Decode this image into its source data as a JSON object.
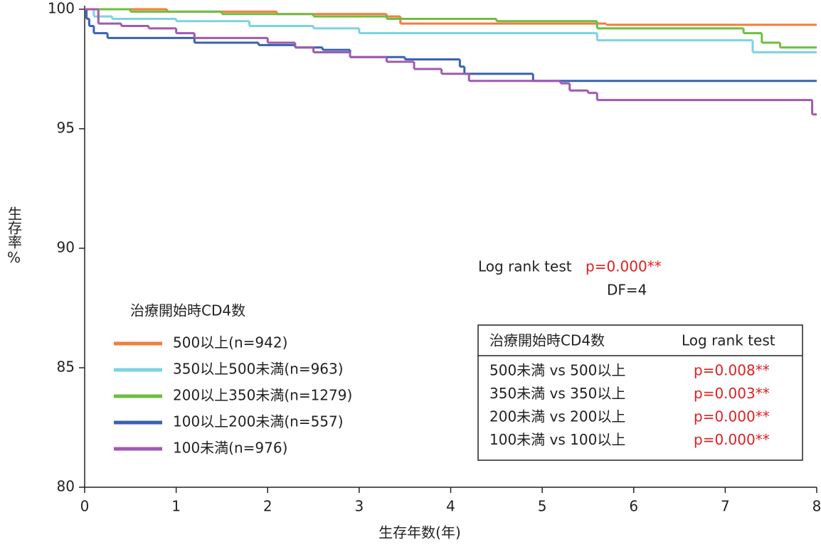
{
  "chart_data": {
    "type": "line",
    "step": "post",
    "xlabel": "生存年数(年)",
    "ylabel": "生存率%",
    "xlim": [
      0,
      8
    ],
    "ylim": [
      80,
      100
    ],
    "xticks": [
      0,
      1,
      2,
      3,
      4,
      5,
      6,
      7,
      8
    ],
    "yticks": [
      80,
      85,
      90,
      95,
      100
    ],
    "legend_title": "治療開始時CD4数",
    "series": [
      {
        "name": "500以上(n=942)",
        "color": "#f47c3c",
        "x": [
          0,
          0.9,
          2.1,
          3.3,
          3.45,
          5.7,
          8
        ],
        "values": [
          100,
          99.9,
          99.8,
          99.7,
          99.4,
          99.35,
          99.35
        ]
      },
      {
        "name": "350以上500未満(n=963)",
        "color": "#7dd3e0",
        "x": [
          0,
          0.1,
          0.3,
          1.0,
          1.8,
          2.5,
          3.0,
          5.6,
          7.3,
          8
        ],
        "values": [
          100,
          99.7,
          99.6,
          99.5,
          99.3,
          99.2,
          99.0,
          98.7,
          98.2,
          98.2
        ]
      },
      {
        "name": "200以上350未満(n=1279)",
        "color": "#6cbf3f",
        "x": [
          0,
          0.5,
          1.5,
          2.5,
          3.3,
          4.5,
          5.6,
          7.2,
          7.4,
          7.6,
          8
        ],
        "values": [
          100,
          99.9,
          99.8,
          99.7,
          99.6,
          99.5,
          99.2,
          99.0,
          98.6,
          98.4,
          98.4
        ]
      },
      {
        "name": "100以上200未満(n=557)",
        "color": "#3a62b0",
        "x": [
          0,
          0.02,
          0.05,
          0.1,
          0.25,
          1.2,
          1.9,
          2.3,
          2.6,
          2.9,
          3.5,
          4.1,
          4.15,
          4.9,
          8
        ],
        "values": [
          100,
          99.6,
          99.3,
          99.0,
          98.8,
          98.6,
          98.5,
          98.4,
          98.3,
          98.0,
          97.9,
          97.6,
          97.3,
          97.0,
          97.0
        ]
      },
      {
        "name": "100未満(n=976)",
        "color": "#a05aae",
        "x": [
          0,
          0.15,
          0.4,
          0.7,
          1.0,
          1.2,
          2.0,
          2.3,
          2.5,
          2.9,
          3.3,
          3.6,
          3.9,
          4.2,
          5.2,
          5.3,
          5.5,
          5.6,
          7.95,
          8
        ],
        "values": [
          100,
          99.4,
          99.3,
          99.2,
          99.0,
          98.8,
          98.6,
          98.4,
          98.2,
          98.0,
          97.8,
          97.5,
          97.3,
          97.0,
          96.9,
          96.6,
          96.5,
          96.2,
          95.6,
          95.6
        ]
      }
    ],
    "log_rank": {
      "label": "Log rank test",
      "p": "p=0.000**",
      "df": "DF=4"
    },
    "table": {
      "header": [
        "治療開始時CD4数",
        "Log rank test"
      ],
      "rows": [
        [
          "500未満 vs 500以上",
          "p=0.008**"
        ],
        [
          "350未満 vs 350以上",
          "p=0.003**"
        ],
        [
          "200未満 vs 200以上",
          "p=0.000**"
        ],
        [
          "100未満 vs 100以上",
          "p=0.000**"
        ]
      ]
    }
  }
}
